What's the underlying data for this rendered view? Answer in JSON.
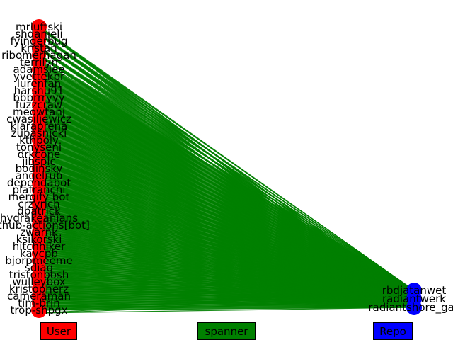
{
  "diagram": {
    "type": "bipartite-graph",
    "edge_color": "#008000",
    "user_node_color": "#ff0000",
    "repo_node_color": "#0000ff",
    "user_labels": [
      "mrluftski",
      "shdanieli",
      "fyingerbug",
      "kristan",
      "ribomerhagan",
      "terrilyn",
      "adamslee",
      "yvettekpr",
      "lurenfan",
      "harshu91",
      "bbbrrryyy",
      "fuzzcraw",
      "meowtanj",
      "cwasiljewicz",
      "klaraprena",
      "zupasnicki",
      "kthpoly",
      "tonyseni",
      "drkcone",
      "jibsplc",
      "bodinsky",
      "angelrub",
      "dependabot",
      "plafranchi",
      "mergify bot",
      "crzyrich",
      "dpatrick",
      "hydrakeanians",
      "github-actions[bot]",
      "zwarnk",
      "ksikorski",
      "hitchhiker",
      "kaycpb",
      "bjorpmeeme",
      "sdiag",
      "tristonbosh",
      "wulleybox",
      "kristopherz",
      "cameraman",
      "tim-brin",
      "trop-shpgx"
    ],
    "repo_labels": [
      "rbdjatanwet",
      "radiantwerk",
      "radiantshore_gas"
    ],
    "legend": [
      {
        "label": "User",
        "color": "#ff0000"
      },
      {
        "label": "spanner",
        "color": "#008000"
      },
      {
        "label": "Repo",
        "color": "#0000ff"
      }
    ]
  }
}
